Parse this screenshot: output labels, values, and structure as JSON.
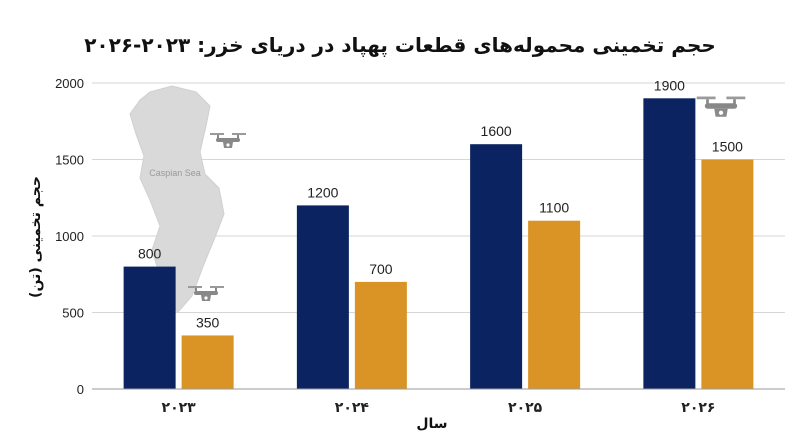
{
  "chart_data": {
    "type": "bar",
    "title": "حجم تخمینی محموله‌های قطعات پهپاد در دریای خزر: ۲۰۲۳-۲۰۲۶",
    "xlabel": "سال",
    "ylabel": "حجم تخمینی (تن)",
    "categories": [
      "۲۰۲۳",
      "۲۰۲۴",
      "۲۰۲۵",
      "۲۰۲۶"
    ],
    "series": [
      {
        "values": [
          800,
          1200,
          1600,
          1900
        ],
        "color": "#0b2461"
      },
      {
        "values": [
          350,
          700,
          1100,
          1500
        ],
        "color": "#d99425"
      }
    ],
    "ylim": [
      0,
      2000
    ],
    "yticks": [
      0,
      500,
      1000,
      1500,
      2000
    ],
    "grid": true,
    "legend": "none",
    "map_label": "Caspian Sea",
    "icons": [
      "map-icon",
      "drone-icon"
    ]
  }
}
